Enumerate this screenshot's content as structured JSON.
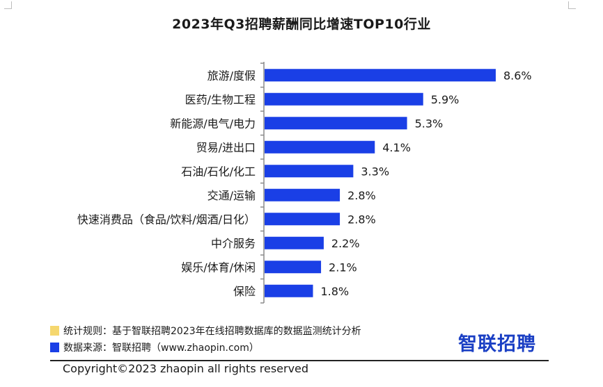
{
  "chart_data": {
    "type": "bar",
    "orientation": "horizontal",
    "title": "2023年Q3招聘薪酬同比增速TOP10行业",
    "categories": [
      "旅游/度假",
      "医药/生物工程",
      "新能源/电气/电力",
      "贸易/进出口",
      "石油/石化/化工",
      "交通/运输",
      "快速消费品（食品/饮料/烟酒/日化）",
      "中介服务",
      "娱乐/体育/休闲",
      "保险"
    ],
    "values": [
      8.6,
      5.9,
      5.3,
      4.1,
      3.3,
      2.8,
      2.8,
      2.2,
      2.1,
      1.8
    ],
    "value_labels": [
      "8.6%",
      "5.9%",
      "5.3%",
      "4.1%",
      "3.3%",
      "2.8%",
      "2.8%",
      "2.2%",
      "2.1%",
      "1.8%"
    ],
    "xlim": [
      0,
      9.5
    ],
    "bar_color": "#1a3fe6",
    "grid": false,
    "xlabel": "",
    "ylabel": ""
  },
  "legend": {
    "rule_text": "统计规则：基于智联招聘2023年在线招聘数据库的数据监测统计分析",
    "rule_color": "#f5d76e",
    "source_text": "数据来源：智联招聘（www.zhaopin.com）",
    "source_color": "#1a3fe6"
  },
  "logo": "智联招聘",
  "copyright": "Copyright©2023 zhaopin all rights reserved"
}
